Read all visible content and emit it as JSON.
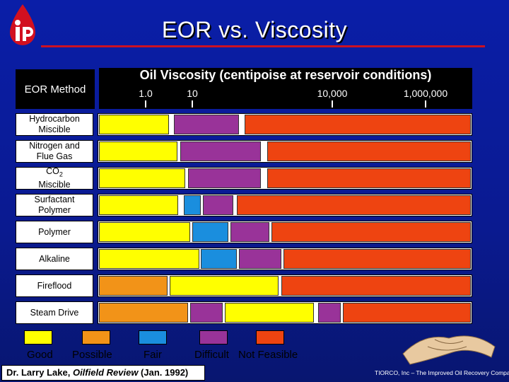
{
  "header": {
    "title": "EOR vs. Viscosity"
  },
  "chart_data": {
    "type": "bar",
    "subtype": "horizontal-range",
    "title": "EOR vs. Viscosity",
    "xlabel": "Oil Viscosity (centipoise at reservoir conditions)",
    "ylabel": "EOR Method",
    "xscale": "log",
    "xlim": [
      0.1,
      10000000
    ],
    "xticks": [
      {
        "value": 1.0,
        "label": "1.0"
      },
      {
        "value": 10,
        "label": "10"
      },
      {
        "value": 10000,
        "label": "10,000"
      },
      {
        "value": 1000000,
        "label": "1,000,000"
      }
    ],
    "categories": [
      "Good",
      "Possible",
      "Fair",
      "Difficult",
      "Not Feasible"
    ],
    "category_colors": {
      "Good": "#ffff00",
      "Possible": "#f29318",
      "Fair": "#1a8ede",
      "Difficult": "#993399",
      "Not Feasible": "#ee4411"
    },
    "rows": [
      {
        "label": "Hydrocarbon Miscible",
        "label_lines": [
          "Hydrocarbon",
          "Miscible"
        ],
        "segments": [
          {
            "from": 0.1,
            "to": 3.2,
            "cat": "Good"
          },
          {
            "from": 4.0,
            "to": 100,
            "cat": "Difficult"
          },
          {
            "from": 130,
            "to": 10000000,
            "cat": "Not Feasible"
          }
        ]
      },
      {
        "label": "Nitrogen and Flue Gas",
        "label_lines": [
          "Nitrogen and",
          "Flue Gas"
        ],
        "segments": [
          {
            "from": 0.1,
            "to": 4.8,
            "cat": "Good"
          },
          {
            "from": 5.5,
            "to": 300,
            "cat": "Difficult"
          },
          {
            "from": 400,
            "to": 10000000,
            "cat": "Not Feasible"
          }
        ]
      },
      {
        "label": "CO2 Miscible",
        "label_lines": [
          "CO",
          "Miscible"
        ],
        "label_sub": "2",
        "segments": [
          {
            "from": 0.1,
            "to": 7,
            "cat": "Good"
          },
          {
            "from": 8,
            "to": 300,
            "cat": "Difficult"
          },
          {
            "from": 400,
            "to": 10000000,
            "cat": "Not Feasible"
          }
        ]
      },
      {
        "label": "Surfactant Polymer",
        "label_lines": [
          "Surfactant",
          "Polymer"
        ],
        "segments": [
          {
            "from": 0.1,
            "to": 5,
            "cat": "Good"
          },
          {
            "from": 6.5,
            "to": 15,
            "cat": "Fair"
          },
          {
            "from": 17,
            "to": 75,
            "cat": "Difficult"
          },
          {
            "from": 90,
            "to": 10000000,
            "cat": "Not Feasible"
          }
        ]
      },
      {
        "label": "Polymer",
        "label_lines": [
          "Polymer"
        ],
        "segments": [
          {
            "from": 0.1,
            "to": 9,
            "cat": "Good"
          },
          {
            "from": 10,
            "to": 60,
            "cat": "Fair"
          },
          {
            "from": 65,
            "to": 450,
            "cat": "Difficult"
          },
          {
            "from": 500,
            "to": 10000000,
            "cat": "Not Feasible"
          }
        ]
      },
      {
        "label": "Alkaline",
        "label_lines": [
          "Alkaline"
        ],
        "segments": [
          {
            "from": 0.1,
            "to": 14,
            "cat": "Good"
          },
          {
            "from": 15,
            "to": 90,
            "cat": "Fair"
          },
          {
            "from": 100,
            "to": 800,
            "cat": "Difficult"
          },
          {
            "from": 900,
            "to": 10000000,
            "cat": "Not Feasible"
          }
        ]
      },
      {
        "label": "Fireflood",
        "label_lines": [
          "Fireflood"
        ],
        "segments": [
          {
            "from": 0.1,
            "to": 3,
            "cat": "Possible"
          },
          {
            "from": 3.3,
            "to": 700,
            "cat": "Good"
          },
          {
            "from": 800,
            "to": 10000000,
            "cat": "Not Feasible"
          }
        ]
      },
      {
        "label": "Steam Drive",
        "label_lines": [
          "Steam Drive"
        ],
        "segments": [
          {
            "from": 0.1,
            "to": 8,
            "cat": "Possible"
          },
          {
            "from": 9,
            "to": 45,
            "cat": "Difficult"
          },
          {
            "from": 50,
            "to": 4000,
            "cat": "Good"
          },
          {
            "from": 5000,
            "to": 15000,
            "cat": "Difficult"
          },
          {
            "from": 17000,
            "to": 10000000,
            "cat": "Not Feasible"
          }
        ]
      }
    ]
  },
  "legend": {
    "items": [
      {
        "label": "Good",
        "color": "#ffff00"
      },
      {
        "label": "Possible",
        "color": "#f29318"
      },
      {
        "label": "Fair",
        "color": "#1a8ede"
      },
      {
        "label": "Difficult",
        "color": "#993399"
      },
      {
        "label": "Not Feasible",
        "color": "#ee4411"
      }
    ]
  },
  "citation": {
    "author": "Dr. Larry Lake, ",
    "journal": "Oilfield Review",
    "date": " (Jan. 1992)"
  },
  "footer": {
    "text": "TIORCO, Inc – The Improved Oil Recovery Company"
  },
  "colors": {
    "background": "#0a1ea8",
    "title_rule": "#cc1122",
    "logo_red": "#d21020"
  }
}
